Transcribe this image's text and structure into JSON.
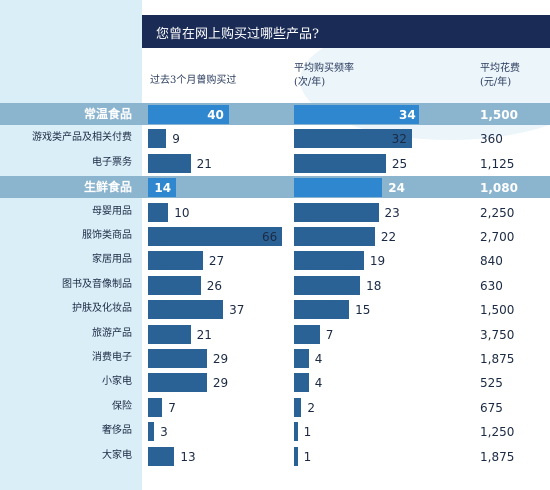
{
  "title": "您曾在网上购买过哪些产品?",
  "headers": {
    "col1": "过去3个月曾购买过",
    "col2_line1": "平均购买频率",
    "col2_line2": "(次/年)",
    "col3_line1": "平均花费",
    "col3_line2": "(元/年)"
  },
  "colors": {
    "bar": "#2a6296",
    "bar_highlight": "#2f87cf",
    "title_bar": "#1a2b55",
    "left_column": "#d9eef7",
    "highlight_band": "#8bb4cf"
  },
  "chart_data": {
    "type": "bar",
    "orientation": "horizontal",
    "title": "您曾在网上购买过哪些产品?",
    "categories": [
      "常温食品",
      "游戏类产品及相关付费",
      "电子票务",
      "生鲜食品",
      "母婴用品",
      "服饰类商品",
      "家居用品",
      "图书及音像制品",
      "护肤及化妆品",
      "旅游产品",
      "消费电子",
      "小家电",
      "保险",
      "奢侈品",
      "大家电"
    ],
    "highlighted": [
      "常温食品",
      "生鲜食品"
    ],
    "series": [
      {
        "name": "过去3个月曾购买过",
        "values": [
          40,
          9,
          21,
          14,
          10,
          66,
          27,
          26,
          37,
          21,
          29,
          29,
          7,
          3,
          13
        ],
        "xlim": [
          0,
          66
        ]
      },
      {
        "name": "平均购买频率 (次/年)",
        "values": [
          34,
          32,
          25,
          24,
          23,
          22,
          19,
          18,
          15,
          7,
          4,
          4,
          2,
          1,
          1
        ],
        "xlim": [
          0,
          34
        ]
      }
    ],
    "table": {
      "name": "平均花费 (元/年)",
      "values": [
        "1,500",
        "360",
        "1,125",
        "1,080",
        "2,250",
        "2,700",
        "840",
        "630",
        "1,500",
        "3,750",
        "1,875",
        "525",
        "675",
        "1,250",
        "1,875"
      ]
    },
    "grid": false,
    "legend": "none"
  }
}
